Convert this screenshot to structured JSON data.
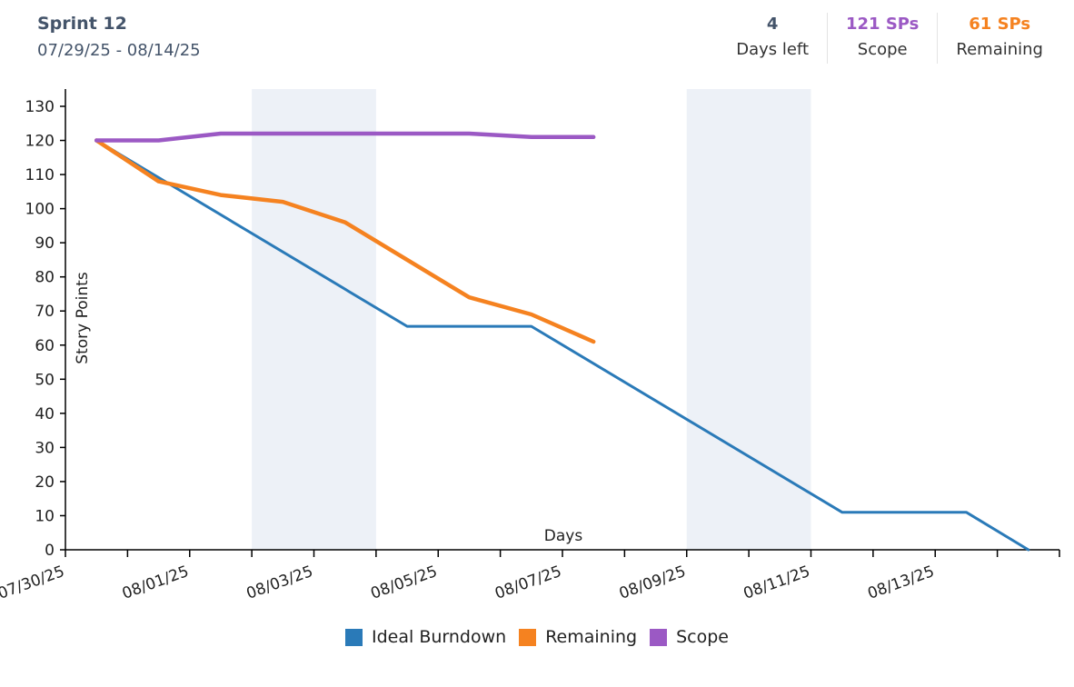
{
  "header": {
    "sprint_name": "Sprint 12",
    "sprint_dates": "07/29/25 - 08/14/25",
    "stats": [
      {
        "value": "4",
        "label": "Days left",
        "color": "#44546a"
      },
      {
        "value": "121 SPs",
        "label": "Scope",
        "color": "#9b59c4"
      },
      {
        "value": "61 SPs",
        "label": "Remaining",
        "color": "#f58220"
      }
    ]
  },
  "chart_data": {
    "type": "line",
    "title": "",
    "xlabel": "Days",
    "ylabel": "Story Points",
    "ylim": [
      0,
      130
    ],
    "y_ticks": [
      0,
      10,
      20,
      30,
      40,
      50,
      60,
      70,
      80,
      90,
      100,
      110,
      120,
      130
    ],
    "x_tick_labels": [
      "07/30/25",
      "08/01/25",
      "08/03/25",
      "08/05/25",
      "08/07/25",
      "08/09/25",
      "08/11/25",
      "08/13/25"
    ],
    "x_tick_count": 16,
    "weekend_bands": [
      [
        3,
        5
      ],
      [
        10,
        12
      ]
    ],
    "series": [
      {
        "name": "Ideal Burndown",
        "color": "#2a7ab8",
        "width": 3,
        "x": [
          0.5,
          5.5,
          7.5,
          12.5,
          14.5,
          15.5
        ],
        "y": [
          120,
          65.5,
          65.5,
          11,
          11,
          0
        ]
      },
      {
        "name": "Remaining",
        "color": "#f58220",
        "width": 4.5,
        "x": [
          0.5,
          1.5,
          2.5,
          3.5,
          4.5,
          5.5,
          6.5,
          7.5,
          8.5
        ],
        "y": [
          120,
          108,
          104,
          102,
          96,
          85,
          74,
          69,
          61
        ]
      },
      {
        "name": "Scope",
        "color": "#9b59c4",
        "width": 4.5,
        "x": [
          0.5,
          1.5,
          2.5,
          3.5,
          4.5,
          5.5,
          6.5,
          7.5,
          8.5
        ],
        "y": [
          120,
          120,
          122,
          122,
          122,
          122,
          122,
          121,
          121
        ]
      }
    ]
  }
}
